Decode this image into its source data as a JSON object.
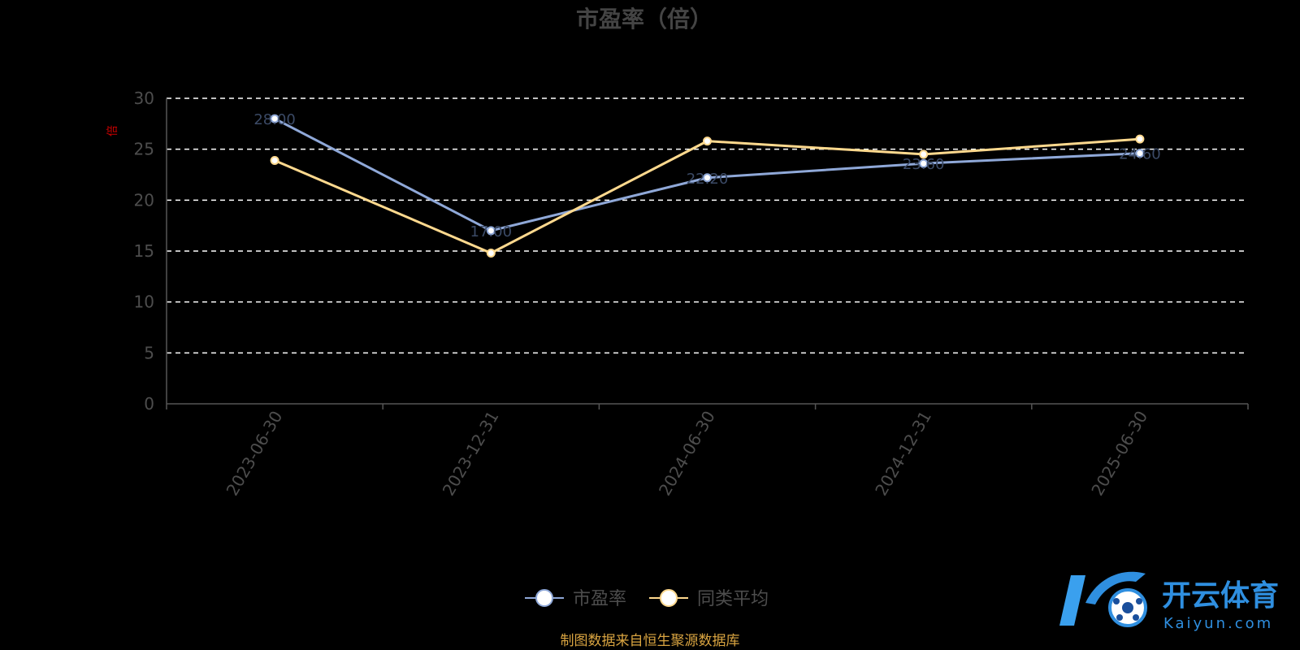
{
  "chart_data": {
    "type": "line",
    "title": "市盈率（倍）",
    "ylabel": "倍",
    "categories": [
      "2023-06-30",
      "2023-12-31",
      "2024-06-30",
      "2024-12-31",
      "2025-06-30"
    ],
    "ylim": [
      0,
      30
    ],
    "yticks": [
      0,
      5,
      10,
      15,
      20,
      25,
      30
    ],
    "grid": true,
    "legend_position": "bottom",
    "series": [
      {
        "name": "市盈率",
        "values": [
          28.0,
          17.0,
          22.2,
          23.6,
          24.6
        ],
        "color": "#8fa8d8"
      },
      {
        "name": "同类平均",
        "values": [
          23.9,
          14.8,
          25.8,
          24.5,
          26.0
        ],
        "color": "#ffd98e"
      }
    ]
  },
  "source_note": "制图数据来自恒生聚源数据库",
  "watermark": {
    "brand_cn": "开云体育",
    "brand_en": "Kaiyun.com"
  }
}
